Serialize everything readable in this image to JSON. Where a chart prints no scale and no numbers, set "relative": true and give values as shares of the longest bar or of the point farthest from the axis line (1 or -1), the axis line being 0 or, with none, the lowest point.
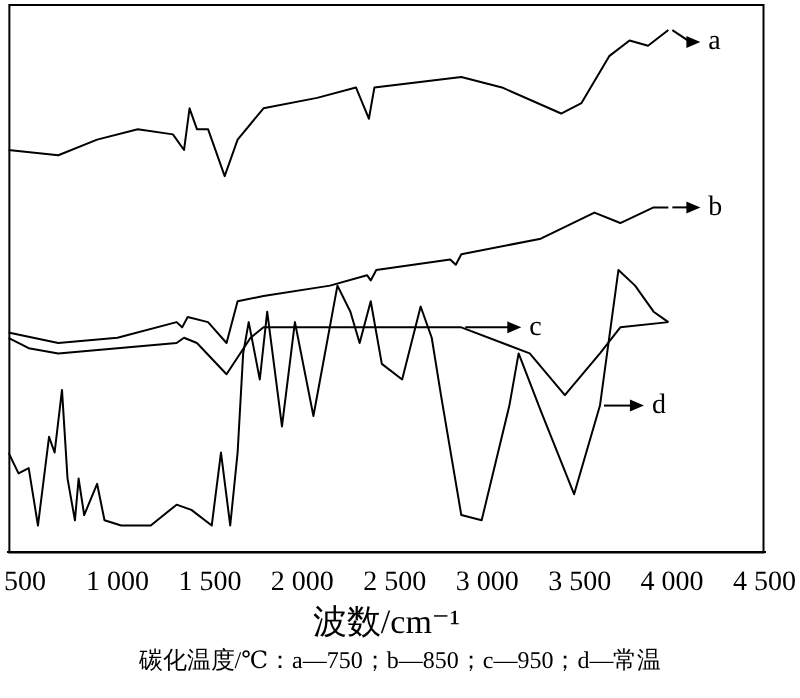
{
  "chart_data": {
    "type": "line",
    "xlabel": "波数/cm⁻¹",
    "annotations": [
      "碳化温度/℃：a—750；b—850；c—950；d—常温"
    ],
    "relative": true,
    "xlim": [
      410,
      4500
    ],
    "xticks": [
      500,
      {
        "value": 1000,
        "label": "1 000"
      },
      {
        "value": 1500,
        "label": "1 500"
      },
      {
        "value": 2000,
        "label": "2 000"
      },
      {
        "value": 2500,
        "label": "2 500"
      },
      {
        "value": 3000,
        "label": "3 000"
      },
      {
        "value": 3500,
        "label": "3 500"
      },
      {
        "value": 4000,
        "label": "4 000"
      },
      {
        "value": 4500,
        "label": "4 500"
      }
    ],
    "grid": false,
    "legend": "right",
    "marker": "none",
    "line_style": "solid",
    "series": [
      {
        "name": "a",
        "color": "#000000",
        "x": [
          410,
          680,
          890,
          1110,
          1300,
          1360,
          1390,
          1430,
          1490,
          1580,
          1650,
          1790,
          2080,
          2290,
          2360,
          2390,
          2860,
          3080,
          3400,
          3510,
          3660,
          3770,
          3870,
          3980
        ],
        "values": [
          0.77,
          0.76,
          0.79,
          0.81,
          0.8,
          0.77,
          0.85,
          0.81,
          0.81,
          0.72,
          0.79,
          0.85,
          0.87,
          0.89,
          0.83,
          0.89,
          0.91,
          0.89,
          0.84,
          0.86,
          0.95,
          0.98,
          0.97,
          1.0
        ]
      },
      {
        "name": "b",
        "color": "#000000",
        "x": [
          410,
          680,
          1000,
          1320,
          1350,
          1380,
          1490,
          1590,
          1650,
          1790,
          2150,
          2350,
          2370,
          2400,
          2800,
          2830,
          2860,
          3290,
          3580,
          3720,
          3900,
          3980
        ],
        "values": [
          0.42,
          0.4,
          0.41,
          0.44,
          0.43,
          0.45,
          0.44,
          0.4,
          0.48,
          0.49,
          0.51,
          0.53,
          0.52,
          0.54,
          0.56,
          0.55,
          0.57,
          0.6,
          0.65,
          0.63,
          0.66,
          0.66
        ]
      },
      {
        "name": "c",
        "color": "#000000",
        "x": [
          410,
          520,
          680,
          1000,
          1320,
          1360,
          1430,
          1590,
          1720,
          1790,
          2290,
          2860,
          3230,
          3420,
          3610,
          3720,
          3980
        ],
        "values": [
          0.41,
          0.39,
          0.38,
          0.39,
          0.4,
          0.41,
          0.4,
          0.34,
          0.41,
          0.43,
          0.43,
          0.43,
          0.38,
          0.3,
          0.38,
          0.43,
          0.44
        ]
      },
      {
        "name": "d",
        "color": "#000000",
        "x": [
          410,
          465,
          520,
          570,
          630,
          660,
          700,
          730,
          770,
          790,
          820,
          890,
          930,
          1020,
          1180,
          1320,
          1400,
          1510,
          1560,
          1610,
          1650,
          1680,
          1710,
          1770,
          1810,
          1890,
          1960,
          2060,
          2190,
          2260,
          2310,
          2370,
          2430,
          2540,
          2640,
          2700,
          2750,
          2860,
          2970,
          3120,
          3170,
          3290,
          3470,
          3610,
          3710,
          3800,
          3900,
          3980
        ],
        "values": [
          0.19,
          0.15,
          0.16,
          0.05,
          0.22,
          0.19,
          0.31,
          0.14,
          0.06,
          0.14,
          0.07,
          0.13,
          0.06,
          0.05,
          0.05,
          0.09,
          0.08,
          0.05,
          0.19,
          0.05,
          0.19,
          0.38,
          0.44,
          0.33,
          0.46,
          0.24,
          0.44,
          0.26,
          0.51,
          0.46,
          0.4,
          0.48,
          0.36,
          0.33,
          0.47,
          0.41,
          0.3,
          0.07,
          0.06,
          0.28,
          0.38,
          0.27,
          0.11,
          0.28,
          0.54,
          0.51,
          0.46,
          0.44
        ]
      }
    ]
  }
}
